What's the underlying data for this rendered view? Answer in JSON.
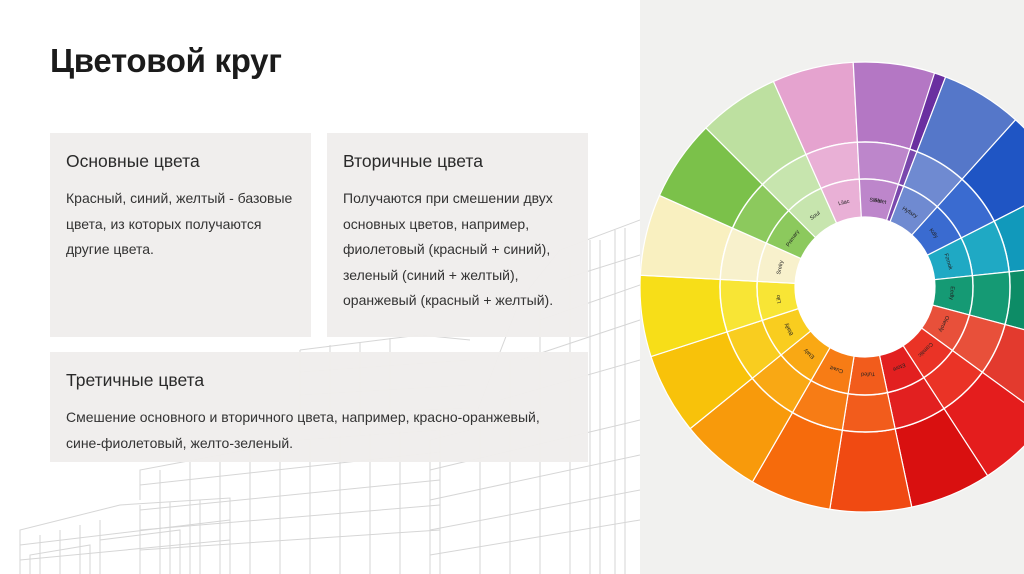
{
  "slide": {
    "title": "Цветовой круг"
  },
  "cards": {
    "primary": {
      "heading": "Основные цвета",
      "text": "Красный, синий, желтый - базовые цвета, из которых получаются другие цвета."
    },
    "secondary": {
      "heading": "Вторичные цвета",
      "text": "Получаются при смешении двух основных цветов, например, фиолетовый (красный + синий), зеленый (синий + желтый), оранжевый (красный + желтый)."
    },
    "tertiary": {
      "heading": "Третичные цвета",
      "text": "Смешение основного и вторичного цвета, например, красно-оранжевый, сине-фиолетовый, желто-зеленый."
    }
  },
  "wheel": {
    "segments": [
      {
        "start": -90,
        "outer": "#6a2fa0",
        "middle": "#7a48ad"
      },
      {
        "start": -69,
        "outer": "#5577c9",
        "middle": "#6f8ad1"
      },
      {
        "start": -48,
        "outer": "#1f55c4",
        "middle": "#3a6bd0"
      },
      {
        "start": -27,
        "outer": "#1199bb",
        "middle": "#1fa9c4"
      },
      {
        "start": -6,
        "outer": "#0d8c66",
        "middle": "#159a74"
      },
      {
        "start": 15,
        "outer": "#e33a2e",
        "middle": "#e8503a"
      },
      {
        "start": 36,
        "outer": "#e41d1d",
        "middle": "#ea3326"
      },
      {
        "start": 57,
        "outer": "#d91010",
        "middle": "#e22020"
      },
      {
        "start": 78,
        "outer": "#f04a12",
        "middle": "#f25c1c"
      },
      {
        "start": 99,
        "outer": "#f66b0c",
        "middle": "#f77c15"
      },
      {
        "start": 120,
        "outer": "#f89a0b",
        "middle": "#f9a814"
      },
      {
        "start": 141,
        "outer": "#f8c20a",
        "middle": "#f9cd1f"
      },
      {
        "start": 162,
        "outer": "#f7de18",
        "middle": "#f8e535"
      },
      {
        "start": 183,
        "outer": "#f9f0c0",
        "middle": "#f8f1cc"
      },
      {
        "start": 204,
        "outer": "#7bc14a",
        "middle": "#8cc95d"
      },
      {
        "start": 225,
        "outer": "#bde0a0",
        "middle": "#c7e5ae"
      },
      {
        "start": 246,
        "outer": "#e5a3cf",
        "middle": "#e9b0d6"
      },
      {
        "start": 267,
        "outer": "#b477c4",
        "middle": "#bd86cb"
      }
    ],
    "labels": [
      {
        "angle": -80,
        "text": "Sleet"
      },
      {
        "angle": -59,
        "text": "Hyfazy"
      },
      {
        "angle": -38,
        "text": "Kdly"
      },
      {
        "angle": -17,
        "text": "Fzrnok"
      },
      {
        "angle": 4,
        "text": "Eedly"
      },
      {
        "angle": 25,
        "text": "Oleroly"
      },
      {
        "angle": 46,
        "text": "Comitic"
      },
      {
        "angle": 67,
        "text": "Etore"
      },
      {
        "angle": 88,
        "text": "Tufed"
      },
      {
        "angle": 109,
        "text": "Cuwit"
      },
      {
        "angle": 130,
        "text": "Etaly"
      },
      {
        "angle": 151,
        "text": "Blaily"
      },
      {
        "angle": 172,
        "text": "Lilo"
      },
      {
        "angle": 193,
        "text": "Srelry"
      },
      {
        "angle": 214,
        "text": "Primary"
      },
      {
        "angle": 235,
        "text": "Soul"
      },
      {
        "angle": 256,
        "text": "Lilac"
      },
      {
        "angle": 277,
        "text": "Sleet"
      }
    ]
  }
}
